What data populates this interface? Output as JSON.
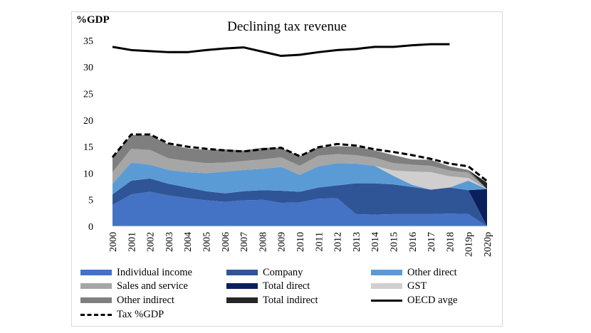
{
  "chart_data": {
    "type": "area",
    "title": "Declining tax revenue",
    "ylabel": "%GDP",
    "xlabel": "",
    "ylim": [
      0,
      35
    ],
    "yticks": [
      0,
      5,
      10,
      15,
      20,
      25,
      30,
      35
    ],
    "categories": [
      "2000",
      "2001",
      "2002",
      "2003",
      "2004",
      "2005",
      "2006",
      "2007",
      "2008",
      "2009",
      "2010",
      "2011",
      "2012",
      "2013",
      "2014",
      "2015",
      "2016",
      "2017",
      "2018",
      "2019p",
      "2020p"
    ],
    "stacked_series": [
      {
        "name": "Individual income",
        "color": "#4472c4",
        "values": [
          4.0,
          6.0,
          6.5,
          5.8,
          5.3,
          4.9,
          4.6,
          4.9,
          5.0,
          4.4,
          4.5,
          5.2,
          5.3,
          2.3,
          2.2,
          2.3,
          2.3,
          2.3,
          2.4,
          2.3,
          0
        ]
      },
      {
        "name": "Company",
        "color": "#2f5597",
        "values": [
          2.0,
          2.6,
          2.5,
          2.2,
          2.0,
          1.7,
          1.6,
          1.7,
          1.8,
          2.3,
          2.0,
          2.1,
          2.4,
          5.8,
          5.9,
          5.6,
          5.1,
          4.6,
          4.9,
          4.5,
          0
        ]
      },
      {
        "name": "Total direct",
        "color": "#0a1f5c",
        "values": [
          0,
          0,
          0,
          0,
          0,
          0,
          0,
          0,
          0,
          0,
          0,
          0,
          0,
          0,
          0,
          0,
          0,
          0,
          0,
          0,
          7.0
        ]
      },
      {
        "name": "Other direct",
        "color": "#5b9bd5",
        "values": [
          2.0,
          3.4,
          2.6,
          2.6,
          2.9,
          3.4,
          4.1,
          4.0,
          4.0,
          4.5,
          3.2,
          4.0,
          4.2,
          3.7,
          3.3,
          1.6,
          0.4,
          0,
          0,
          1.8,
          0
        ]
      },
      {
        "name": "GST",
        "color": "#d0cece",
        "values": [
          0,
          0,
          0,
          0,
          0,
          0,
          0,
          0,
          0,
          0,
          0,
          0,
          0,
          0,
          0,
          1.0,
          2.5,
          3.3,
          2.1,
          0.5,
          0
        ]
      },
      {
        "name": "Sales and service",
        "color": "#a6a6a6",
        "values": [
          2.2,
          2.6,
          2.8,
          2.2,
          2.1,
          1.9,
          1.7,
          1.7,
          1.8,
          1.8,
          1.7,
          2.0,
          1.7,
          1.6,
          1.5,
          1.4,
          1.3,
          1.2,
          1.1,
          1.0,
          0
        ]
      },
      {
        "name": "Other indirect",
        "color": "#7f7f7f",
        "values": [
          2.8,
          2.6,
          2.8,
          2.6,
          2.4,
          2.5,
          2.5,
          2.0,
          2.2,
          1.8,
          1.8,
          1.6,
          1.5,
          1.6,
          1.4,
          1.5,
          1.0,
          1.1,
          0.8,
          0.5,
          0
        ]
      },
      {
        "name": "Total indirect",
        "color": "#262626",
        "values": [
          0,
          0,
          0,
          0,
          0,
          0,
          0,
          0,
          0,
          0,
          0,
          0,
          0,
          0,
          0,
          0,
          0,
          0,
          0,
          0,
          1.2
        ]
      }
    ],
    "line_series": [
      {
        "name": "OECD avge",
        "style": "solid",
        "values": [
          33.8,
          33.2,
          33.0,
          32.8,
          32.8,
          33.2,
          33.5,
          33.7,
          32.9,
          32.1,
          32.3,
          32.8,
          33.2,
          33.4,
          33.8,
          33.8,
          34.1,
          34.3,
          34.3,
          null,
          null
        ]
      },
      {
        "name": "Tax %GDP",
        "style": "dashed",
        "values": [
          13.0,
          17.3,
          17.3,
          15.6,
          15.0,
          14.6,
          14.3,
          14.1,
          14.5,
          14.8,
          13.2,
          14.9,
          15.5,
          15.2,
          14.5,
          14.0,
          13.4,
          12.7,
          11.8,
          11.3,
          8.5
        ]
      }
    ],
    "legend": [
      {
        "label": "Individual income",
        "kind": "area",
        "color": "#4472c4"
      },
      {
        "label": "Company",
        "kind": "area",
        "color": "#2f5597"
      },
      {
        "label": "Other direct",
        "kind": "area",
        "color": "#5b9bd5"
      },
      {
        "label": "Sales and service",
        "kind": "area",
        "color": "#a6a6a6"
      },
      {
        "label": "Total direct",
        "kind": "area",
        "color": "#0a1f5c"
      },
      {
        "label": "GST",
        "kind": "area",
        "color": "#d0cece"
      },
      {
        "label": "Other indirect",
        "kind": "area",
        "color": "#7f7f7f"
      },
      {
        "label": "Total indirect",
        "kind": "area",
        "color": "#262626"
      },
      {
        "label": "OECD avge",
        "kind": "line"
      },
      {
        "label": "Tax %GDP",
        "kind": "dash"
      }
    ],
    "legend_position": "bottom",
    "grid": false
  }
}
